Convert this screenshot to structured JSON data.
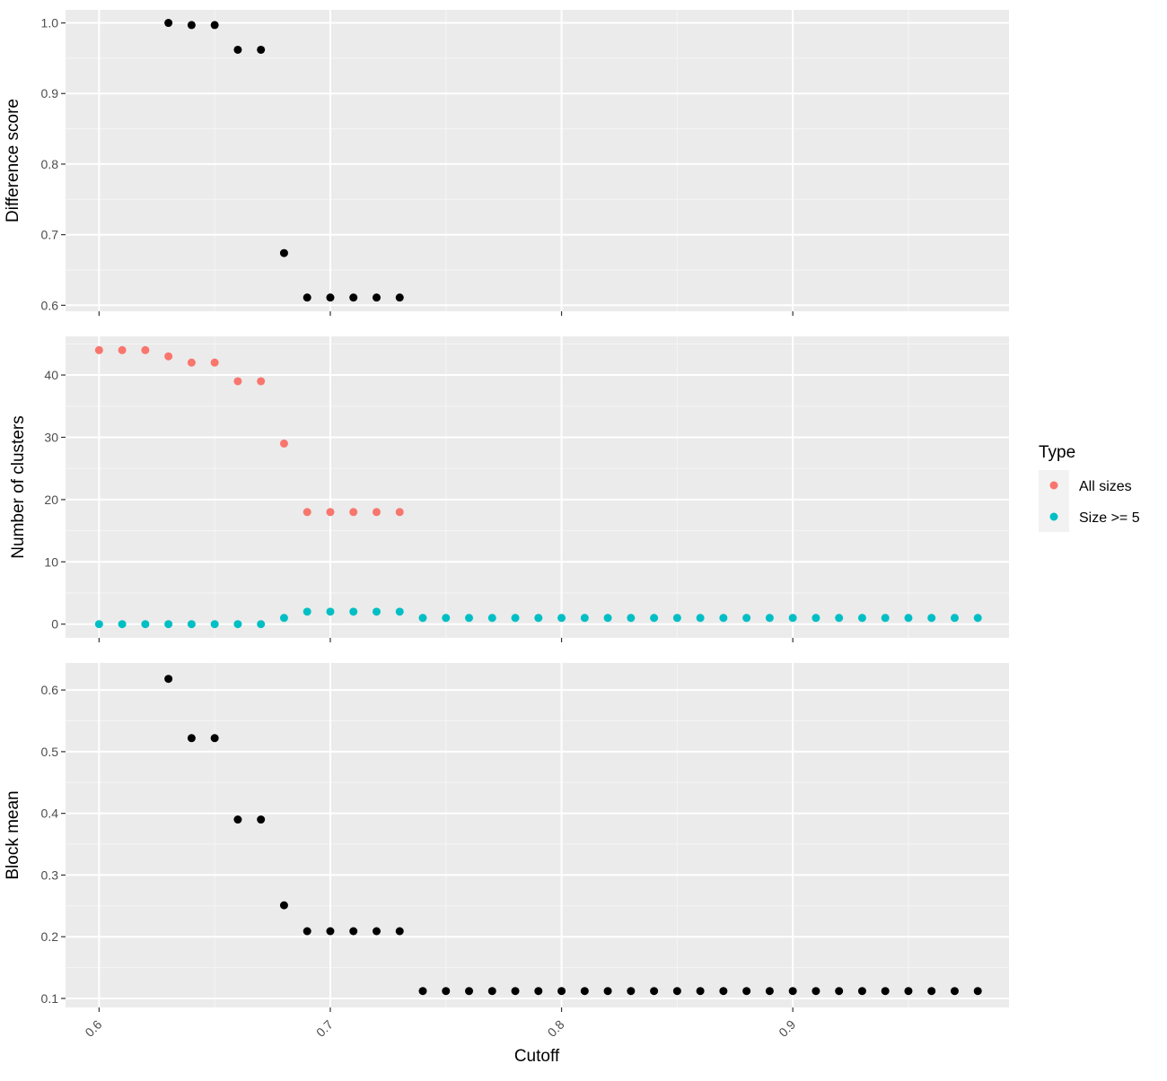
{
  "colors": {
    "panel_background": "#EBEBEB",
    "grid_major": "#FFFFFF",
    "grid_minor": "#F5F5F5",
    "point_default": "#000000",
    "all_sizes": "#F8766D",
    "size_ge_5": "#00BFC4"
  },
  "x_axis": {
    "label": "Cutoff",
    "range": [
      0.5855,
      0.9935
    ],
    "ticks": [
      0.6,
      0.7,
      0.8,
      0.9
    ],
    "tick_labels": [
      "0.6",
      "0.7",
      "0.8",
      "0.9"
    ]
  },
  "legend": {
    "title": "Type",
    "placement": "right",
    "items": [
      {
        "label": "All sizes",
        "color": "#F8766D"
      },
      {
        "label": "Size >= 5",
        "color": "#00BFC4"
      }
    ]
  },
  "chart_data": [
    {
      "type": "scatter",
      "ylabel": "Difference score",
      "ylim": [
        0.5915,
        1.0185
      ],
      "y_ticks": [
        0.6,
        0.7,
        0.8,
        0.9,
        1.0
      ],
      "y_tick_labels": [
        "0.6",
        "0.7",
        "0.8",
        "0.9",
        "1.0"
      ],
      "grid": true,
      "series": [
        {
          "color": "#000000",
          "x": [
            0.63,
            0.64,
            0.65,
            0.66,
            0.67,
            0.68,
            0.69,
            0.7,
            0.71,
            0.72,
            0.73
          ],
          "y": [
            1.0,
            0.997,
            0.997,
            0.962,
            0.962,
            0.674,
            0.611,
            0.611,
            0.611,
            0.611,
            0.611
          ]
        }
      ]
    },
    {
      "type": "scatter",
      "ylabel": "Number of clusters",
      "ylim": [
        -2.2,
        46.2
      ],
      "y_ticks": [
        0,
        10,
        20,
        30,
        40
      ],
      "y_tick_labels": [
        "0",
        "10",
        "20",
        "30",
        "40"
      ],
      "grid": true,
      "series": [
        {
          "name": "All sizes",
          "color": "#F8766D",
          "x": [
            0.6,
            0.61,
            0.62,
            0.63,
            0.64,
            0.65,
            0.66,
            0.67,
            0.68,
            0.69,
            0.7,
            0.71,
            0.72,
            0.73
          ],
          "y": [
            44,
            44,
            44,
            43,
            42,
            42,
            39,
            39,
            29,
            18,
            18,
            18,
            18,
            18
          ]
        },
        {
          "name": "Size >= 5",
          "color": "#00BFC4",
          "x": [
            0.6,
            0.61,
            0.62,
            0.63,
            0.64,
            0.65,
            0.66,
            0.67,
            0.68,
            0.69,
            0.7,
            0.71,
            0.72,
            0.73,
            0.74,
            0.75,
            0.76,
            0.77,
            0.78,
            0.79,
            0.8,
            0.81,
            0.82,
            0.83,
            0.84,
            0.85,
            0.86,
            0.87,
            0.88,
            0.89,
            0.9,
            0.91,
            0.92,
            0.93,
            0.94,
            0.95,
            0.96,
            0.97,
            0.98
          ],
          "y": [
            0,
            0,
            0,
            0,
            0,
            0,
            0,
            0,
            1,
            2,
            2,
            2,
            2,
            2,
            1,
            1,
            1,
            1,
            1,
            1,
            1,
            1,
            1,
            1,
            1,
            1,
            1,
            1,
            1,
            1,
            1,
            1,
            1,
            1,
            1,
            1,
            1,
            1,
            1
          ]
        }
      ]
    },
    {
      "type": "scatter",
      "ylabel": "Block mean",
      "ylim": [
        0.0854,
        0.6438
      ],
      "y_ticks": [
        0.1,
        0.2,
        0.3,
        0.4,
        0.5,
        0.6
      ],
      "y_tick_labels": [
        "0.1",
        "0.2",
        "0.3",
        "0.4",
        "0.5",
        "0.6"
      ],
      "grid": true,
      "series": [
        {
          "color": "#000000",
          "x": [
            0.63,
            0.64,
            0.65,
            0.66,
            0.67,
            0.68,
            0.69,
            0.7,
            0.71,
            0.72,
            0.73,
            0.74,
            0.75,
            0.76,
            0.77,
            0.78,
            0.79,
            0.8,
            0.81,
            0.82,
            0.83,
            0.84,
            0.85,
            0.86,
            0.87,
            0.88,
            0.89,
            0.9,
            0.91,
            0.92,
            0.93,
            0.94,
            0.95,
            0.96,
            0.97,
            0.98
          ],
          "y": [
            0.618,
            0.522,
            0.522,
            0.39,
            0.39,
            0.251,
            0.209,
            0.209,
            0.209,
            0.209,
            0.209,
            0.112,
            0.112,
            0.112,
            0.112,
            0.112,
            0.112,
            0.112,
            0.112,
            0.112,
            0.112,
            0.112,
            0.112,
            0.112,
            0.112,
            0.112,
            0.112,
            0.112,
            0.112,
            0.112,
            0.112,
            0.112,
            0.112,
            0.112,
            0.112,
            0.112
          ]
        }
      ]
    }
  ]
}
